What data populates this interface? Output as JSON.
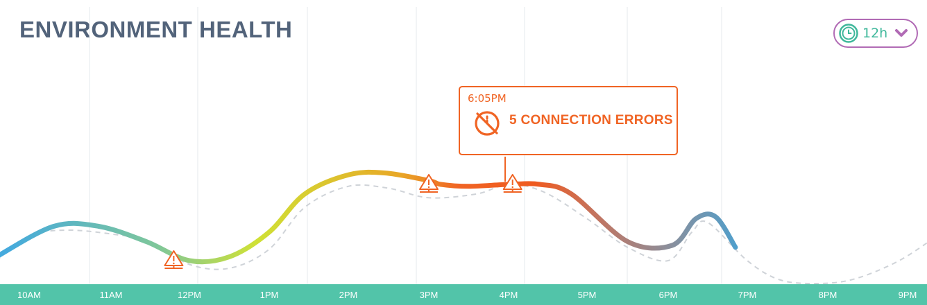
{
  "header": {
    "title": "ENVIRONMENT HEALTH"
  },
  "range_picker": {
    "value": "12h",
    "icon": "clock-icon",
    "dropdown_icon": "chevron-down-icon"
  },
  "tooltip": {
    "time": "6:05PM",
    "icon": "disconnected-clock-icon",
    "message": "5 CONNECTION ERRORS"
  },
  "chart_data": {
    "type": "line",
    "x_ticks": [
      "10AM",
      "11AM",
      "12PM",
      "1PM",
      "2PM",
      "3PM",
      "4PM",
      "5PM",
      "6PM",
      "7PM",
      "8PM",
      "9PM"
    ],
    "series": [
      {
        "style": "solid-gradient",
        "x": [
          9.6,
          10.3,
          10.85,
          11.45,
          12,
          12.5,
          13,
          13.45,
          14,
          14.45,
          15,
          15.15,
          15.5,
          16,
          16.4,
          16.8,
          17.5,
          18.05,
          18.35,
          18.6,
          18.85
        ],
        "y": [
          0.02,
          0.18,
          0.18,
          0.1,
          0.0,
          0.02,
          0.15,
          0.35,
          0.45,
          0.46,
          0.42,
          0.4,
          0.39,
          0.4,
          0.4,
          0.35,
          0.1,
          0.08,
          0.22,
          0.23,
          0.07
        ]
      },
      {
        "style": "dashed",
        "x": [
          9.6,
          10.0,
          10.45,
          11.0,
          11.5,
          12.0,
          12.5,
          13.0,
          13.45,
          14.0,
          14.5,
          15.0,
          15.6,
          16.0,
          16.45,
          17.0,
          17.5,
          18.0,
          18.3,
          18.5,
          19.0,
          19.4,
          19.85,
          20.3,
          20.8,
          21.2,
          21.6
        ],
        "y": [
          0.0,
          0.13,
          0.16,
          0.14,
          0.1,
          -0.02,
          -0.04,
          0.06,
          0.28,
          0.39,
          0.38,
          0.33,
          0.35,
          0.4,
          0.36,
          0.22,
          0.07,
          0.0,
          0.15,
          0.2,
          0.0,
          -0.1,
          -0.12,
          -0.1,
          -0.02,
          0.08,
          0.21
        ]
      }
    ],
    "warnings": [
      {
        "x": 11.8,
        "y": 0.0
      },
      {
        "x": 15.0,
        "y": 0.4
      },
      {
        "x": 16.05,
        "y": 0.4
      }
    ],
    "colors": {
      "axis_band": "#52c4a9",
      "gridline": "#e6e8ec",
      "dashed_line": "#cfd3d8",
      "warning": "#f06424",
      "gradient": [
        "#45aadd",
        "#7fc79a",
        "#cfe136",
        "#e8a827",
        "#f06424",
        "#ef5a1f",
        "#c4745f",
        "#8a8f9c",
        "#3ba4dc"
      ]
    }
  }
}
